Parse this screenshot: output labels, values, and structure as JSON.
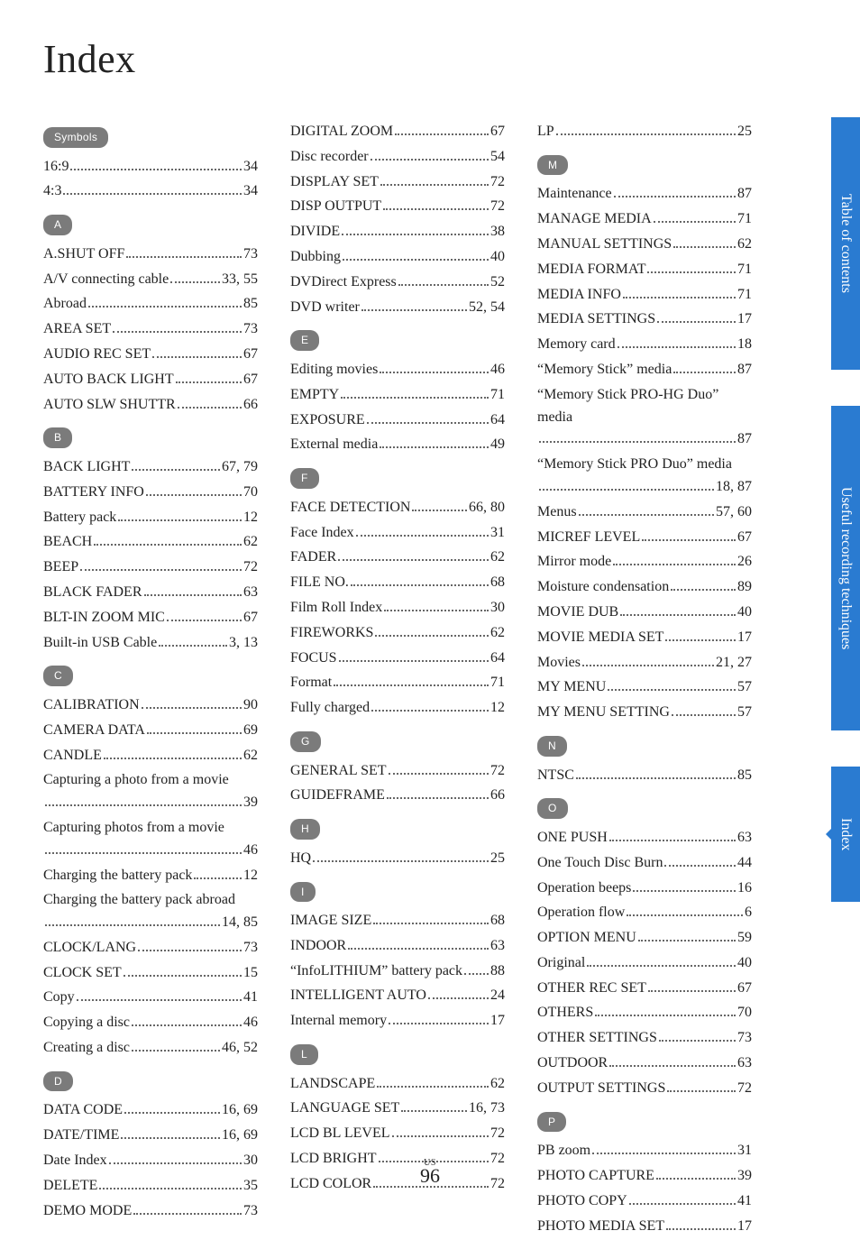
{
  "title": "Index",
  "footer": {
    "region": "US",
    "page_number": "96"
  },
  "side_tabs": [
    {
      "label": "Table of contents",
      "class": "toc"
    },
    {
      "label": "Useful recording techniques",
      "class": "urt"
    },
    {
      "label": "Index",
      "class": "idx"
    }
  ],
  "columns": [
    {
      "sections": [
        {
          "header": "Symbols",
          "entries": [
            {
              "label": "16:9",
              "page": "34"
            },
            {
              "label": "4:3",
              "page": "34"
            }
          ]
        },
        {
          "header": "A",
          "entries": [
            {
              "label": "A.SHUT OFF",
              "page": "73"
            },
            {
              "label": "A/V connecting cable",
              "page": "33, 55"
            },
            {
              "label": "Abroad",
              "page": "85"
            },
            {
              "label": "AREA SET",
              "page": "73"
            },
            {
              "label": "AUDIO REC SET",
              "page": "67"
            },
            {
              "label": "AUTO BACK LIGHT",
              "page": "67"
            },
            {
              "label": "AUTO SLW SHUTTR",
              "page": "66"
            }
          ]
        },
        {
          "header": "B",
          "entries": [
            {
              "label": "BACK LIGHT",
              "page": "67, 79"
            },
            {
              "label": "BATTERY INFO",
              "page": "70"
            },
            {
              "label": "Battery pack",
              "page": "12"
            },
            {
              "label": "BEACH",
              "page": "62"
            },
            {
              "label": "BEEP",
              "page": "72"
            },
            {
              "label": "BLACK FADER",
              "page": "63"
            },
            {
              "label": "BLT-IN ZOOM MIC",
              "page": "67"
            },
            {
              "label": "Built-in USB Cable",
              "page": "3, 13"
            }
          ]
        },
        {
          "header": "C",
          "entries": [
            {
              "label": "CALIBRATION",
              "page": "90"
            },
            {
              "label": "CAMERA DATA",
              "page": "69"
            },
            {
              "label": "CANDLE",
              "page": "62"
            },
            {
              "label": "Capturing a photo from a movie",
              "page": "39",
              "multiline": true
            },
            {
              "label": "Capturing photos from a movie",
              "page": "46",
              "multiline": true
            },
            {
              "label": "Charging the battery pack",
              "page": "12"
            },
            {
              "label": "Charging the battery pack abroad",
              "page": "14, 85",
              "multiline": true
            },
            {
              "label": "CLOCK/LANG",
              "page": "73"
            },
            {
              "label": "CLOCK SET",
              "page": "15"
            },
            {
              "label": "Copy",
              "page": "41"
            },
            {
              "label": "Copying a disc",
              "page": "46"
            },
            {
              "label": "Creating a disc",
              "page": "46, 52"
            }
          ]
        },
        {
          "header": "D",
          "entries": [
            {
              "label": "DATA CODE",
              "page": "16, 69"
            },
            {
              "label": "DATE/TIME",
              "page": "16, 69"
            },
            {
              "label": "Date Index",
              "page": "30"
            },
            {
              "label": "DELETE",
              "page": "35"
            },
            {
              "label": "DEMO MODE",
              "page": "73"
            }
          ]
        }
      ]
    },
    {
      "sections": [
        {
          "header": null,
          "entries": [
            {
              "label": "DIGITAL ZOOM",
              "page": "67"
            },
            {
              "label": "Disc recorder",
              "page": "54"
            },
            {
              "label": "DISPLAY SET",
              "page": "72"
            },
            {
              "label": "DISP OUTPUT",
              "page": "72"
            },
            {
              "label": "DIVIDE",
              "page": "38"
            },
            {
              "label": "Dubbing",
              "page": "40"
            },
            {
              "label": "DVDirect Express",
              "page": "52"
            },
            {
              "label": "DVD writer",
              "page": "52, 54"
            }
          ]
        },
        {
          "header": "E",
          "entries": [
            {
              "label": "Editing movies",
              "page": "46"
            },
            {
              "label": "EMPTY",
              "page": "71"
            },
            {
              "label": "EXPOSURE",
              "page": "64"
            },
            {
              "label": "External media",
              "page": "49"
            }
          ]
        },
        {
          "header": "F",
          "entries": [
            {
              "label": "FACE DETECTION",
              "page": "66, 80"
            },
            {
              "label": "Face Index",
              "page": "31"
            },
            {
              "label": "FADER",
              "page": "62"
            },
            {
              "label": "FILE NO.",
              "page": "68"
            },
            {
              "label": "Film Roll Index",
              "page": "30"
            },
            {
              "label": "FIREWORKS",
              "page": "62"
            },
            {
              "label": "FOCUS",
              "page": "64"
            },
            {
              "label": "Format",
              "page": "71"
            },
            {
              "label": "Fully charged",
              "page": "12"
            }
          ]
        },
        {
          "header": "G",
          "entries": [
            {
              "label": "GENERAL SET",
              "page": "72"
            },
            {
              "label": "GUIDEFRAME",
              "page": "66"
            }
          ]
        },
        {
          "header": "H",
          "entries": [
            {
              "label": "HQ",
              "page": "25"
            }
          ]
        },
        {
          "header": "I",
          "entries": [
            {
              "label": "IMAGE SIZE",
              "page": "68"
            },
            {
              "label": "INDOOR",
              "page": "63"
            },
            {
              "label": "“InfoLITHIUM” battery pack",
              "page": "88"
            },
            {
              "label": "INTELLIGENT AUTO",
              "page": "24"
            },
            {
              "label": "Internal memory",
              "page": "17"
            }
          ]
        },
        {
          "header": "L",
          "entries": [
            {
              "label": "LANDSCAPE",
              "page": "62"
            },
            {
              "label": "LANGUAGE SET",
              "page": "16, 73"
            },
            {
              "label": "LCD BL LEVEL",
              "page": "72"
            },
            {
              "label": "LCD BRIGHT",
              "page": "72"
            },
            {
              "label": "LCD COLOR",
              "page": "72"
            }
          ]
        }
      ]
    },
    {
      "sections": [
        {
          "header": null,
          "entries": [
            {
              "label": "LP",
              "page": "25"
            }
          ]
        },
        {
          "header": "M",
          "entries": [
            {
              "label": "Maintenance",
              "page": "87"
            },
            {
              "label": "MANAGE MEDIA",
              "page": "71"
            },
            {
              "label": "MANUAL SETTINGS",
              "page": "62"
            },
            {
              "label": "MEDIA FORMAT",
              "page": "71"
            },
            {
              "label": "MEDIA INFO",
              "page": "71"
            },
            {
              "label": "MEDIA SETTINGS",
              "page": "17"
            },
            {
              "label": "Memory card",
              "page": "18"
            },
            {
              "label": "“Memory Stick” media",
              "page": "87"
            },
            {
              "label": "“Memory Stick PRO-HG Duo” media",
              "page": "87",
              "multiline": true
            },
            {
              "label": "“Memory Stick PRO Duo” media",
              "page": "18, 87",
              "multiline": true
            },
            {
              "label": "Menus",
              "page": "57, 60"
            },
            {
              "label": "MICREF LEVEL",
              "page": "67"
            },
            {
              "label": "Mirror mode",
              "page": "26"
            },
            {
              "label": "Moisture condensation",
              "page": "89"
            },
            {
              "label": "MOVIE DUB",
              "page": "40"
            },
            {
              "label": "MOVIE MEDIA SET",
              "page": "17"
            },
            {
              "label": "Movies",
              "page": "21, 27"
            },
            {
              "label": "MY MENU",
              "page": "57"
            },
            {
              "label": "MY MENU SETTING",
              "page": "57"
            }
          ]
        },
        {
          "header": "N",
          "entries": [
            {
              "label": "NTSC",
              "page": "85"
            }
          ]
        },
        {
          "header": "O",
          "entries": [
            {
              "label": "ONE PUSH",
              "page": "63"
            },
            {
              "label": "One Touch Disc Burn",
              "page": "44"
            },
            {
              "label": "Operation beeps",
              "page": "16"
            },
            {
              "label": "Operation flow",
              "page": "6"
            },
            {
              "label": "OPTION MENU",
              "page": "59"
            },
            {
              "label": "Original",
              "page": "40"
            },
            {
              "label": "OTHER REC SET",
              "page": "67"
            },
            {
              "label": "OTHERS",
              "page": "70"
            },
            {
              "label": "OTHER SETTINGS",
              "page": "73"
            },
            {
              "label": "OUTDOOR",
              "page": "63"
            },
            {
              "label": "OUTPUT SETTINGS",
              "page": "72"
            }
          ]
        },
        {
          "header": "P",
          "entries": [
            {
              "label": "PB zoom",
              "page": "31"
            },
            {
              "label": "PHOTO CAPTURE",
              "page": "39"
            },
            {
              "label": "PHOTO COPY",
              "page": "41"
            },
            {
              "label": "PHOTO MEDIA SET",
              "page": "17"
            }
          ]
        }
      ]
    }
  ]
}
